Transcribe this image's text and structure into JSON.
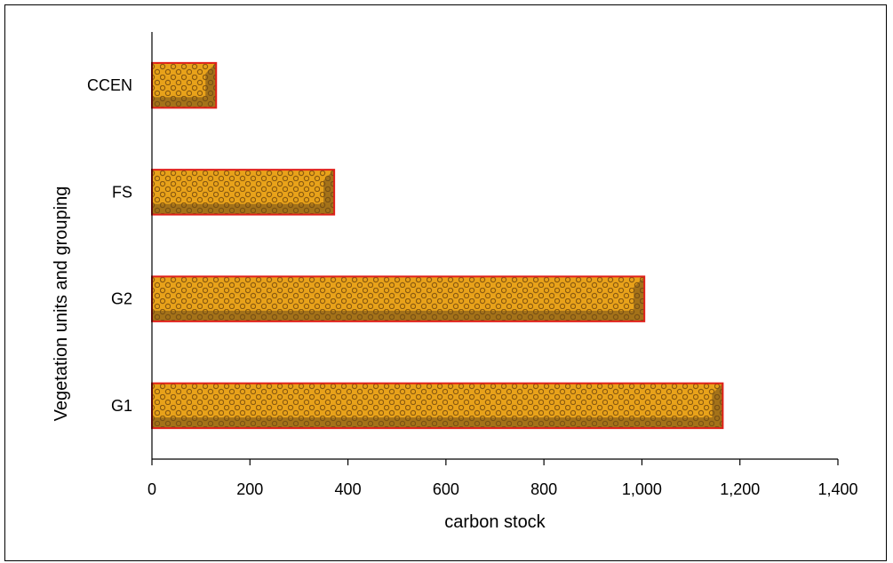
{
  "chart_data": {
    "type": "bar",
    "orientation": "horizontal",
    "categories": [
      "G1",
      "G2",
      "FS",
      "CCEN"
    ],
    "values": [
      1165,
      1005,
      372,
      131
    ],
    "xlabel": "carbon stock",
    "ylabel": "Vegetation units and grouping",
    "xlim": [
      0,
      1400
    ],
    "x_ticks": [
      0,
      200,
      400,
      600,
      800,
      1000,
      1200,
      1400
    ],
    "x_tick_labels": [
      "0",
      "200",
      "400",
      "600",
      "800",
      "1,000",
      "1,200",
      "1,400"
    ],
    "grid": false,
    "legend": "none",
    "colors": {
      "bar_fill": "#e8a21a",
      "bar_pattern_dot": "#8a5a10",
      "bar_shadow": "#6b4a1a",
      "bar_border": "#e0201a",
      "axis": "#000000"
    }
  }
}
